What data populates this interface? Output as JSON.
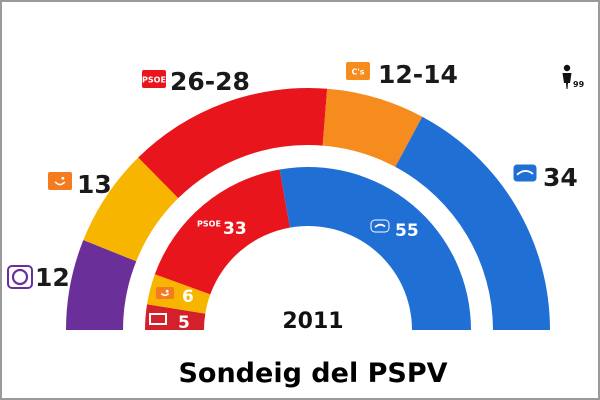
{
  "chart_data": {
    "type": "pie",
    "title": "Sondeig del PSPV",
    "inner_label": "2011",
    "corner_mark": "99",
    "rings": [
      {
        "name": "outer",
        "series": [
          {
            "logo": "podemos-logo",
            "label": "12",
            "value": 12,
            "color": "#6b2f9a"
          },
          {
            "logo": "compromis-logo",
            "label": "13",
            "value": 13,
            "color": "#f7b500"
          },
          {
            "logo": "PSOE",
            "label": "26-28",
            "value": 27,
            "color": "#e8151c"
          },
          {
            "logo": "C's",
            "label": "12-14",
            "value": 13,
            "color": "#f68b1e"
          },
          {
            "logo": "pp-logo",
            "label": "34",
            "value": 34,
            "color": "#1f6fd4"
          }
        ]
      },
      {
        "name": "inner",
        "series": [
          {
            "logo": "eu-logo",
            "label": "5",
            "value": 5,
            "color": "#d3202b"
          },
          {
            "logo": "compromis-logo",
            "label": "6",
            "value": 6,
            "color": "#f7b500"
          },
          {
            "logo": "PSOE",
            "label": "33",
            "value": 33,
            "color": "#e8151c"
          },
          {
            "logo": "pp-logo",
            "label": "55",
            "value": 55,
            "color": "#1f6fd4"
          }
        ]
      }
    ]
  }
}
